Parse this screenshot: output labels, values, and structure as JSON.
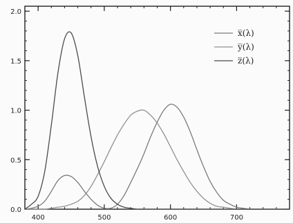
{
  "chart_data": {
    "type": "line",
    "title": "",
    "xlabel": "",
    "ylabel": "",
    "xlim": [
      380,
      780
    ],
    "ylim": [
      0,
      2.05
    ],
    "x_ticks": [
      400,
      500,
      600,
      700
    ],
    "y_ticks": [
      0.0,
      0.5,
      1.0,
      1.5,
      2.0
    ],
    "x_tick_labels": [
      "400",
      "500",
      "600",
      "700"
    ],
    "y_tick_labels": [
      "0.0",
      "0.5",
      "1.0",
      "1.5",
      "2.0"
    ],
    "grid": false,
    "legend_position": "top-right",
    "x": [
      380,
      390,
      400,
      410,
      420,
      430,
      440,
      450,
      460,
      470,
      480,
      490,
      500,
      510,
      520,
      530,
      540,
      550,
      560,
      570,
      580,
      590,
      600,
      610,
      620,
      630,
      640,
      650,
      660,
      670,
      680,
      690,
      700,
      710,
      720,
      730,
      740,
      750,
      760,
      770,
      780
    ],
    "series": [
      {
        "name": "x̅(λ)",
        "color": "#7a7a7a",
        "values": [
          0.0,
          0.01,
          0.03,
          0.08,
          0.18,
          0.29,
          0.34,
          0.33,
          0.27,
          0.18,
          0.1,
          0.04,
          0.01,
          0.01,
          0.05,
          0.14,
          0.27,
          0.41,
          0.56,
          0.73,
          0.88,
          1.0,
          1.06,
          1.03,
          0.93,
          0.78,
          0.6,
          0.43,
          0.28,
          0.17,
          0.09,
          0.05,
          0.02,
          0.01,
          0.0,
          0.0,
          0.0,
          0.0,
          0.0,
          0.0,
          0.0
        ]
      },
      {
        "name": "y̅(λ)",
        "color": "#909090",
        "values": [
          0.0,
          0.0,
          0.0,
          0.0,
          0.01,
          0.02,
          0.03,
          0.05,
          0.08,
          0.14,
          0.23,
          0.35,
          0.48,
          0.62,
          0.75,
          0.86,
          0.95,
          0.99,
          1.0,
          0.95,
          0.87,
          0.76,
          0.63,
          0.5,
          0.38,
          0.27,
          0.18,
          0.11,
          0.06,
          0.03,
          0.02,
          0.01,
          0.0,
          0.0,
          0.0,
          0.0,
          0.0,
          0.0,
          0.0,
          0.0,
          0.0
        ]
      },
      {
        "name": "z̅(λ)",
        "color": "#4a4a4a",
        "values": [
          0.0,
          0.05,
          0.13,
          0.38,
          0.85,
          1.38,
          1.72,
          1.78,
          1.55,
          1.13,
          0.73,
          0.43,
          0.23,
          0.11,
          0.05,
          0.02,
          0.01,
          0.0,
          0.0,
          0.0,
          0.0,
          0.0,
          0.0,
          0.0,
          0.0,
          0.0,
          0.0,
          0.0,
          0.0,
          0.0,
          0.0,
          0.0,
          0.0,
          0.0,
          0.0,
          0.0,
          0.0,
          0.0,
          0.0,
          0.0,
          0.0
        ]
      }
    ]
  }
}
